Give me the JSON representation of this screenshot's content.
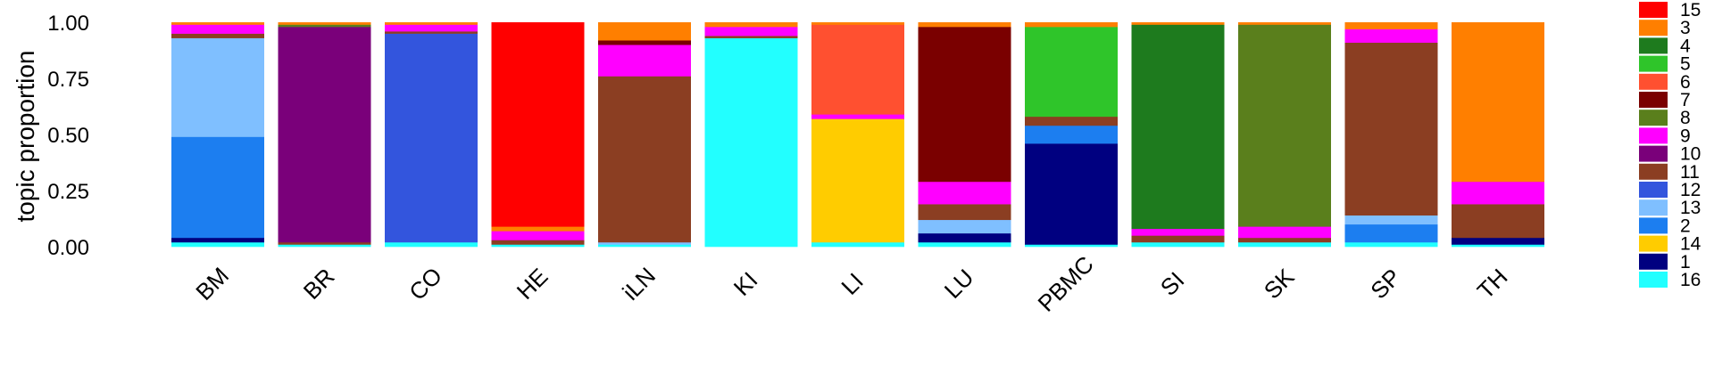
{
  "chart_data": {
    "type": "bar",
    "subtype": "stacked-structure-plot",
    "title": "",
    "xlabel": "",
    "ylabel": "topic proportion",
    "ylim": [
      0,
      1
    ],
    "yticks": [
      "0.00",
      "0.25",
      "0.50",
      "0.75",
      "1.00"
    ],
    "grid": false,
    "legend_position": "right",
    "topics": [
      {
        "name": "15",
        "color": "#FF0000"
      },
      {
        "name": "3",
        "color": "#FF7F00"
      },
      {
        "name": "4",
        "color": "#1E7B1E"
      },
      {
        "name": "5",
        "color": "#2FC52A"
      },
      {
        "name": "6",
        "color": "#FF5030"
      },
      {
        "name": "7",
        "color": "#7A0000"
      },
      {
        "name": "8",
        "color": "#5A7F1C"
      },
      {
        "name": "9",
        "color": "#FF00FF"
      },
      {
        "name": "10",
        "color": "#7A007A"
      },
      {
        "name": "11",
        "color": "#8B3E22"
      },
      {
        "name": "12",
        "color": "#3355DD"
      },
      {
        "name": "13",
        "color": "#7FBFFF"
      },
      {
        "name": "2",
        "color": "#1C7EF0"
      },
      {
        "name": "14",
        "color": "#FFCC00"
      },
      {
        "name": "1",
        "color": "#000080"
      },
      {
        "name": "16",
        "color": "#22FFFF"
      }
    ],
    "groups": [
      {
        "name": "BM",
        "mix": {
          "16": 0.02,
          "1": 0.02,
          "2": 0.45,
          "13": 0.44,
          "9": 0.04,
          "11": 0.02,
          "3": 0.01
        }
      },
      {
        "name": "BR",
        "mix": {
          "16": 0.01,
          "11": 0.01,
          "10": 0.96,
          "3": 0.01,
          "8": 0.01
        }
      },
      {
        "name": "CO",
        "mix": {
          "16": 0.02,
          "12": 0.93,
          "9": 0.03,
          "11": 0.01,
          "3": 0.01
        }
      },
      {
        "name": "HE",
        "mix": {
          "16": 0.01,
          "9": 0.04,
          "11": 0.02,
          "3": 0.02,
          "15": 0.91
        }
      },
      {
        "name": "iLN",
        "mix": {
          "16": 0.01,
          "13": 0.01,
          "11": 0.74,
          "9": 0.14,
          "3": 0.08,
          "7": 0.02
        }
      },
      {
        "name": "KI",
        "mix": {
          "16": 0.93,
          "9": 0.04,
          "11": 0.01,
          "3": 0.02
        }
      },
      {
        "name": "LI",
        "mix": {
          "16": 0.02,
          "14": 0.55,
          "6": 0.4,
          "9": 0.02,
          "3": 0.01
        }
      },
      {
        "name": "LU",
        "mix": {
          "16": 0.02,
          "1": 0.04,
          "13": 0.06,
          "9": 0.1,
          "11": 0.07,
          "7": 0.69,
          "3": 0.02
        }
      },
      {
        "name": "PBMC",
        "mix": {
          "16": 0.01,
          "1": 0.45,
          "2": 0.08,
          "11": 0.04,
          "5": 0.4,
          "3": 0.02
        }
      },
      {
        "name": "SI",
        "mix": {
          "16": 0.02,
          "9": 0.03,
          "11": 0.03,
          "4": 0.91,
          "3": 0.01
        }
      },
      {
        "name": "SK",
        "mix": {
          "16": 0.02,
          "9": 0.05,
          "11": 0.02,
          "8": 0.9,
          "3": 0.01
        }
      },
      {
        "name": "SP",
        "mix": {
          "16": 0.02,
          "2": 0.08,
          "13": 0.04,
          "11": 0.77,
          "9": 0.06,
          "3": 0.03
        }
      },
      {
        "name": "TH",
        "mix": {
          "16": 0.01,
          "1": 0.03,
          "9": 0.1,
          "11": 0.15,
          "3": 0.71
        }
      }
    ]
  }
}
